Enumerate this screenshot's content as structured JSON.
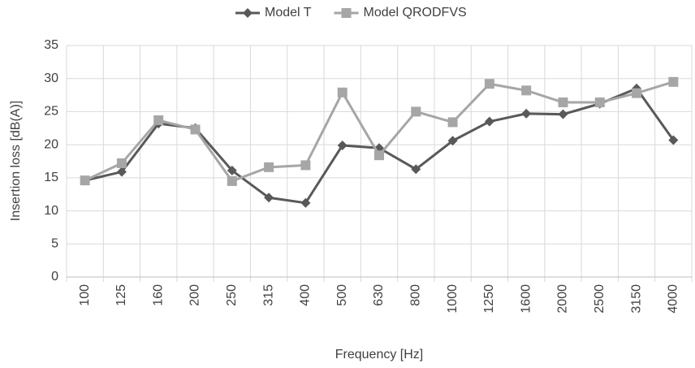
{
  "chart_data": {
    "type": "line",
    "x_label": "Frequency [Hz]",
    "y_label": "Insertion loss [dB(A)]",
    "categories": [
      "100",
      "125",
      "160",
      "200",
      "250",
      "315",
      "400",
      "500",
      "630",
      "800",
      "1000",
      "1250",
      "1600",
      "2000",
      "2500",
      "3150",
      "4000"
    ],
    "series": [
      {
        "name": "Model T",
        "color": "#595959",
        "marker": "diamond",
        "values": [
          14.6,
          15.9,
          23.2,
          22.5,
          16.1,
          12.0,
          11.2,
          19.9,
          19.5,
          16.3,
          20.6,
          23.5,
          24.7,
          24.6,
          26.2,
          28.5,
          20.7
        ]
      },
      {
        "name": "Model QRODFVS",
        "color": "#a6a6a6",
        "marker": "square",
        "values": [
          14.6,
          17.2,
          23.7,
          22.3,
          14.5,
          16.6,
          16.9,
          27.9,
          18.4,
          25.0,
          23.4,
          29.2,
          28.2,
          26.4,
          26.4,
          27.8,
          29.5
        ]
      }
    ],
    "ylim": [
      0,
      35
    ],
    "yticks": [
      0,
      5,
      10,
      15,
      20,
      25,
      30,
      35
    ],
    "grid": true,
    "legend": "top"
  }
}
